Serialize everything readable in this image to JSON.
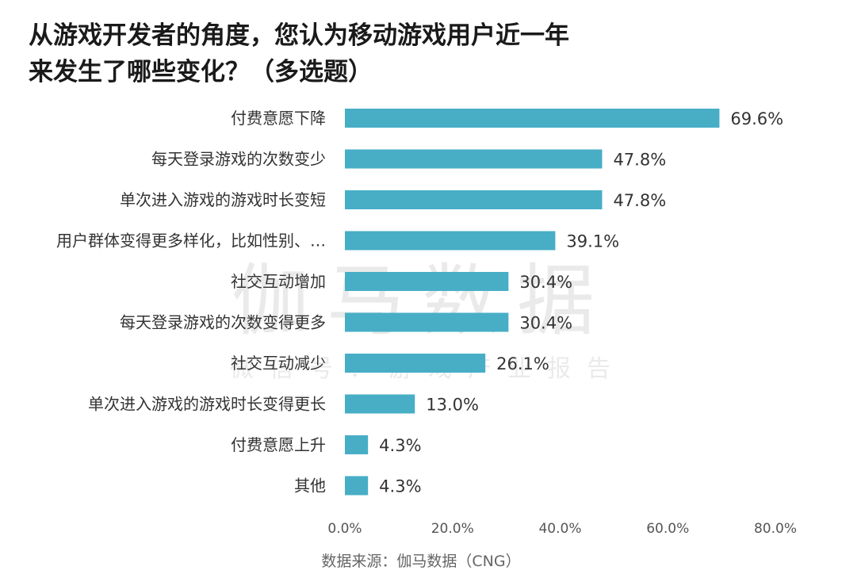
{
  "title": {
    "line1": "从游戏开发者的角度，您认为移动游戏用户近一年",
    "line2": "来发生了哪些变化？（多选题）"
  },
  "watermark": {
    "main": "伽马数据",
    "sub": "微信号：游戏产业报告"
  },
  "source": "数据来源：伽马数据（CNG）",
  "colors": {
    "bar": "#47aec6",
    "label": "#333333",
    "axis": "#555555"
  },
  "chart_data": {
    "type": "bar",
    "orientation": "horizontal",
    "title": "从游戏开发者的角度，您认为移动游戏用户近一年来发生了哪些变化？（多选题）",
    "categories": [
      "付费意愿下降",
      "每天登录游戏的次数变少",
      "单次进入游戏的游戏时长变短",
      "用户群体变得更多样化，比如性别、…",
      "社交互动增加",
      "每天登录游戏的次数变得更多",
      "社交互动减少",
      "单次进入游戏的游戏时长变得更长",
      "付费意愿上升",
      "其他"
    ],
    "values": [
      69.6,
      47.8,
      47.8,
      39.1,
      30.4,
      30.4,
      26.1,
      13.0,
      4.3,
      4.3
    ],
    "value_labels": [
      "69.6%",
      "47.8%",
      "47.8%",
      "39.1%",
      "30.4%",
      "30.4%",
      "26.1%",
      "13.0%",
      "4.3%",
      "4.3%"
    ],
    "x_ticks": [
      "0.0%",
      "20.0%",
      "40.0%",
      "60.0%",
      "80.0%"
    ],
    "xlim": [
      0,
      80
    ],
    "grid": false,
    "legend": "none"
  }
}
